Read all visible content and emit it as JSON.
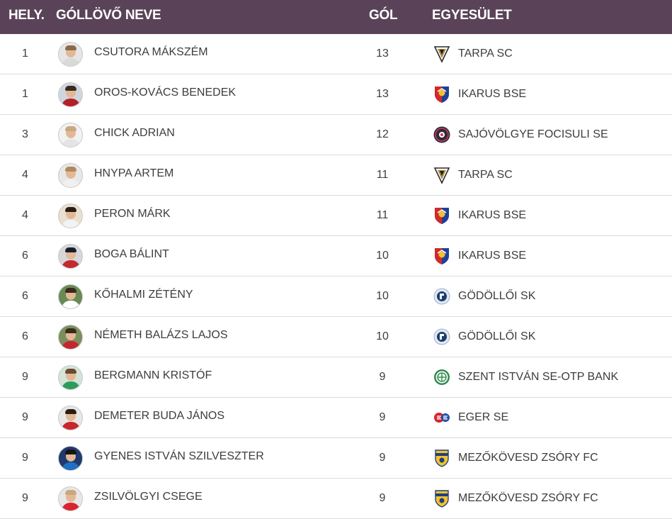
{
  "table": {
    "headers": {
      "rank": "HELY.",
      "name": "GÓLLÖVŐ NEVE",
      "goals": "GÓL",
      "club": "EGYESÜLET"
    },
    "rows": [
      {
        "rank": "1",
        "name": "CSUTORA MÁKSZÉM",
        "goals": "13",
        "club": "TARPA SC",
        "club_logo": "tarpa-crest-icon",
        "avatar_bg": "#e6e6e6",
        "shirt": "#d9d9d9",
        "hair": "#8a6a4a"
      },
      {
        "rank": "1",
        "name": "OROS-KOVÁCS BENEDEK",
        "goals": "13",
        "club": "IKARUS BSE",
        "club_logo": "ikarus-crest-icon",
        "avatar_bg": "#cfd6df",
        "shirt": "#b3202a",
        "hair": "#3a2a1e"
      },
      {
        "rank": "3",
        "name": "CHICK ADRIAN",
        "goals": "12",
        "club": "SAJÓVÖLGYE FOCISULI SE",
        "club_logo": "sajovolgye-crest-icon",
        "avatar_bg": "#f2f2f2",
        "shirt": "#e4e4e4",
        "hair": "#c9a77f"
      },
      {
        "rank": "4",
        "name": "HNYPA ARTEM",
        "goals": "11",
        "club": "TARPA SC",
        "club_logo": "tarpa-crest-icon",
        "avatar_bg": "#e8e8e8",
        "shirt": "#f0f0f0",
        "hair": "#b0885d"
      },
      {
        "rank": "4",
        "name": "PERON MÁRK",
        "goals": "11",
        "club": "IKARUS BSE",
        "club_logo": "ikarus-crest-icon",
        "avatar_bg": "#e9e0cf",
        "shirt": "#f3f3f3",
        "hair": "#2b1d14"
      },
      {
        "rank": "6",
        "name": "BOGA BÁLINT",
        "goals": "10",
        "club": "IKARUS BSE",
        "club_logo": "ikarus-crest-icon",
        "avatar_bg": "#d7d7db",
        "shirt": "#c22a2e",
        "hair": "#1a1c2c"
      },
      {
        "rank": "6",
        "name": "KŐHALMI ZÉTÉNY",
        "goals": "10",
        "club": "GÖDÖLLŐI SK",
        "club_logo": "godolloi-crest-icon",
        "avatar_bg": "#6a8a55",
        "shirt": "#ffffff",
        "hair": "#3a2a1e"
      },
      {
        "rank": "6",
        "name": "NÉMETH BALÁZS LAJOS",
        "goals": "10",
        "club": "GÖDÖLLŐI SK",
        "club_logo": "godolloi-crest-icon",
        "avatar_bg": "#7a8f5e",
        "shirt": "#c8252c",
        "hair": "#3a2a1e"
      },
      {
        "rank": "9",
        "name": "BERGMANN KRISTÓF",
        "goals": "9",
        "club": "SZENT ISTVÁN SE-OTP BANK",
        "club_logo": "szent-istvan-crest-icon",
        "avatar_bg": "#d3e5d6",
        "shirt": "#2e9b5b",
        "hair": "#6b4a2e"
      },
      {
        "rank": "9",
        "name": "DEMETER BUDA JÁNOS",
        "goals": "9",
        "club": "EGER SE",
        "club_logo": "eger-se-crest-icon",
        "avatar_bg": "#e7e7e7",
        "shirt": "#c8252c",
        "hair": "#2b1d14"
      },
      {
        "rank": "9",
        "name": "GYENES ISTVÁN SZILVESZTER",
        "goals": "9",
        "club": "MEZŐKÖVESD ZSÓRY FC",
        "club_logo": "mezokovesd-crest-icon",
        "avatar_bg": "#1e3a6e",
        "shirt": "#1f6fc4",
        "hair": "#1a1410"
      },
      {
        "rank": "9",
        "name": "ZSILVÖLGYI CSEGE",
        "goals": "9",
        "club": "MEZŐKÖVESD ZSÓRY FC",
        "club_logo": "mezokovesd-crest-icon",
        "avatar_bg": "#e7e7e7",
        "shirt": "#d9262e",
        "hair": "#c9a77f"
      }
    ]
  }
}
